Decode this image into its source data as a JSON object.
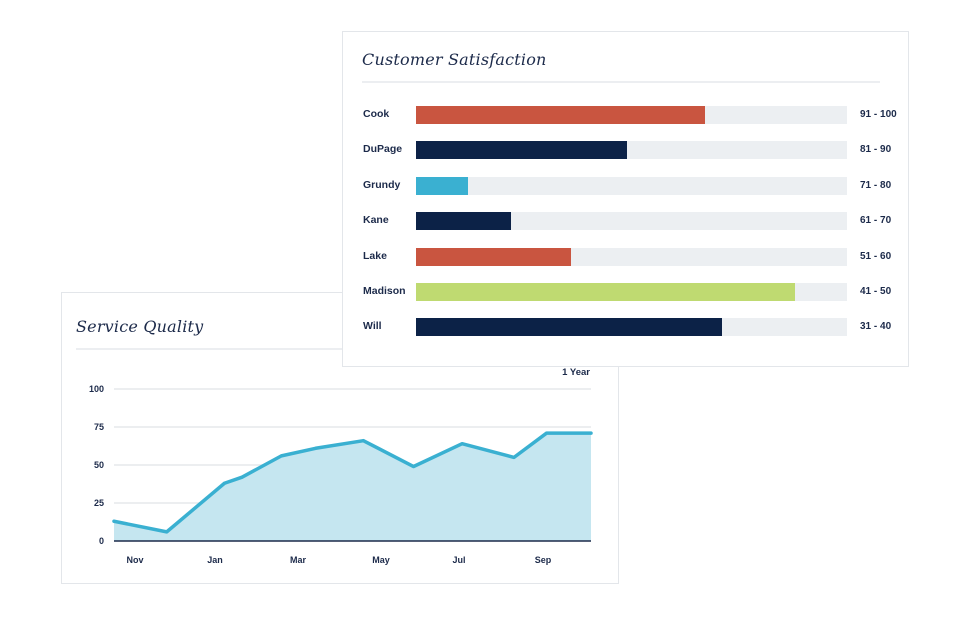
{
  "service_quality": {
    "title": "Service Quality",
    "range_label": "1 Year"
  },
  "customer_satisfaction": {
    "title": "Customer Satisfaction"
  },
  "chart_data": [
    {
      "type": "area",
      "title": "Service Quality",
      "x_ticks": [
        "Nov",
        "Jan",
        "Mar",
        "May",
        "Jul",
        "Sep"
      ],
      "y_ticks": [
        0,
        25,
        50,
        75,
        100
      ],
      "ylim": [
        0,
        100
      ],
      "grid": true,
      "x": [
        0,
        0.63,
        1.32,
        1.53,
        2.0,
        2.41,
        2.98,
        3.58,
        4.16,
        4.78,
        5.17,
        5.7
      ],
      "values": [
        13,
        6,
        38,
        42,
        56,
        61,
        66,
        49,
        64,
        55,
        71,
        71
      ],
      "line_color": "#3ab0d1",
      "fill_color": "#c5e6f0"
    },
    {
      "type": "bar",
      "orientation": "horizontal",
      "title": "Customer Satisfaction",
      "xlim": [
        0,
        100
      ],
      "categories": [
        "Cook",
        "DuPage",
        "Grundy",
        "Kane",
        "Lake",
        "Madison",
        "Will"
      ],
      "values": [
        67,
        49,
        12,
        22,
        36,
        88,
        71
      ],
      "colors": [
        "#c95540",
        "#0c2247",
        "#3ab0d1",
        "#0c2247",
        "#c95540",
        "#bfda71",
        "#0c2247"
      ],
      "range_labels": [
        "91 - 100",
        "81 - 90",
        "71 - 80",
        "61 - 70",
        "51 - 60",
        "41 - 50",
        "31 - 40"
      ]
    }
  ]
}
